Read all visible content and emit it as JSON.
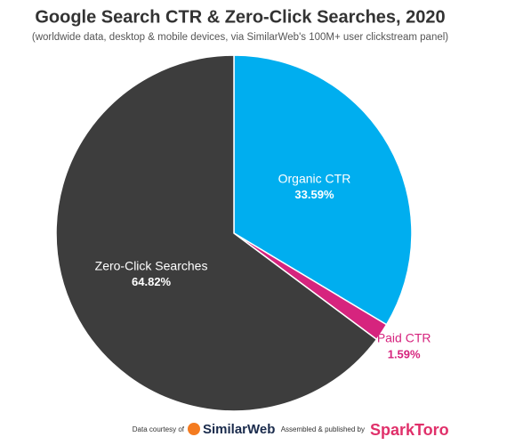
{
  "chart_data": {
    "type": "pie",
    "title": "Google Search CTR & Zero-Click Searches, 2020",
    "subtitle": "(worldwide data, desktop & mobile devices, via SimilarWeb's 100M+ user clickstream panel)",
    "categories": [
      "Organic CTR",
      "Paid CTR",
      "Zero-Click Searches"
    ],
    "values": [
      33.59,
      1.59,
      64.82
    ],
    "value_labels": [
      "33.59%",
      "1.59%",
      "64.82%"
    ],
    "colors": [
      "#00aeef",
      "#d6247e",
      "#3d3d3d"
    ],
    "credits": [
      "Data courtesy of",
      "SimilarWeb",
      "Assembled & published by",
      "SparkToro"
    ]
  }
}
